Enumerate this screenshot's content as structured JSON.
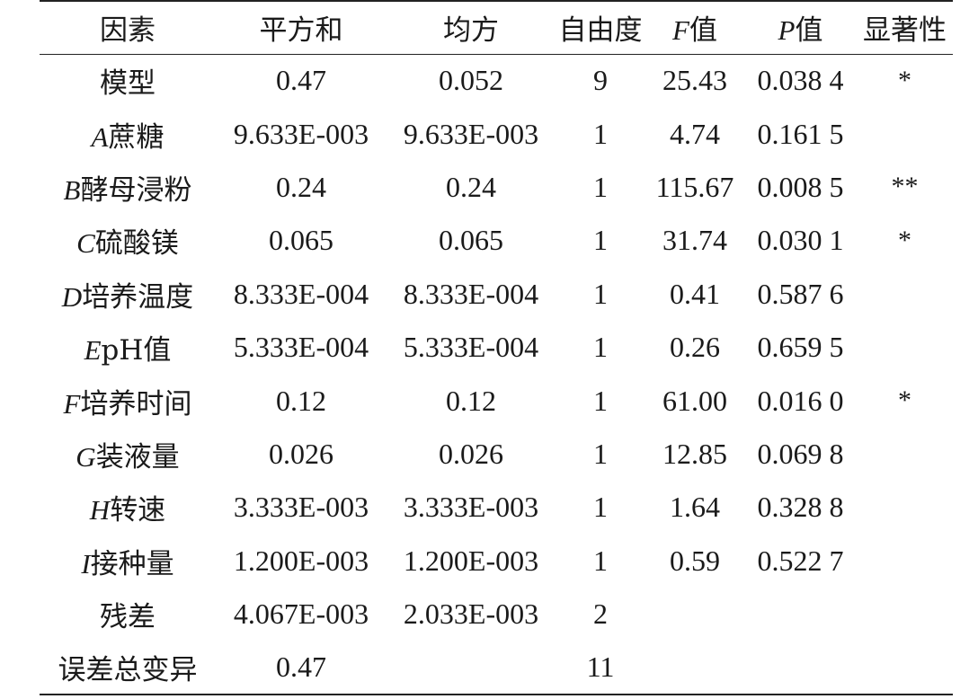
{
  "table": {
    "headers": [
      {
        "prefix": "",
        "text": "因素"
      },
      {
        "prefix": "",
        "text": "平方和"
      },
      {
        "prefix": "",
        "text": "均方"
      },
      {
        "prefix": "",
        "text": "自由度"
      },
      {
        "prefix": "F",
        "text": "值"
      },
      {
        "prefix": "P",
        "text": "值"
      },
      {
        "prefix": "",
        "text": "显著性"
      }
    ],
    "rows": [
      {
        "letter": "",
        "factor": "模型",
        "ss": "0.47",
        "ms": "0.052",
        "df": "9",
        "f": "25.43",
        "p": "0.038 4",
        "sig": "*"
      },
      {
        "letter": "A",
        "factor": "蔗糖",
        "ss": "9.633E-003",
        "ms": "9.633E-003",
        "df": "1",
        "f": "4.74",
        "p": "0.161 5",
        "sig": ""
      },
      {
        "letter": "B",
        "factor": "酵母浸粉",
        "ss": "0.24",
        "ms": "0.24",
        "df": "1",
        "f": "115.67",
        "p": "0.008 5",
        "sig": "**"
      },
      {
        "letter": "C",
        "factor": "硫酸镁",
        "ss": "0.065",
        "ms": "0.065",
        "df": "1",
        "f": "31.74",
        "p": "0.030 1",
        "sig": "*"
      },
      {
        "letter": "D",
        "factor": "培养温度",
        "ss": "8.333E-004",
        "ms": "8.333E-004",
        "df": "1",
        "f": "0.41",
        "p": "0.587 6",
        "sig": ""
      },
      {
        "letter": "E",
        "factor": "pH值",
        "ss": "5.333E-004",
        "ms": "5.333E-004",
        "df": "1",
        "f": "0.26",
        "p": "0.659 5",
        "sig": ""
      },
      {
        "letter": "F",
        "factor": "培养时间",
        "ss": "0.12",
        "ms": "0.12",
        "df": "1",
        "f": "61.00",
        "p": "0.016 0",
        "sig": "*"
      },
      {
        "letter": "G",
        "factor": "装液量",
        "ss": "0.026",
        "ms": "0.026",
        "df": "1",
        "f": "12.85",
        "p": "0.069 8",
        "sig": ""
      },
      {
        "letter": "H",
        "factor": "转速",
        "ss": "3.333E-003",
        "ms": "3.333E-003",
        "df": "1",
        "f": "1.64",
        "p": "0.328 8",
        "sig": ""
      },
      {
        "letter": "I",
        "factor": "接种量",
        "ss": "1.200E-003",
        "ms": "1.200E-003",
        "df": "1",
        "f": "0.59",
        "p": "0.522 7",
        "sig": ""
      },
      {
        "letter": "",
        "factor": "残差",
        "ss": "4.067E-003",
        "ms": "2.033E-003",
        "df": "2",
        "f": "",
        "p": "",
        "sig": ""
      },
      {
        "letter": "",
        "factor": "误差总变异",
        "ss": "0.47",
        "ms": "",
        "df": "11",
        "f": "",
        "p": "",
        "sig": ""
      }
    ]
  }
}
